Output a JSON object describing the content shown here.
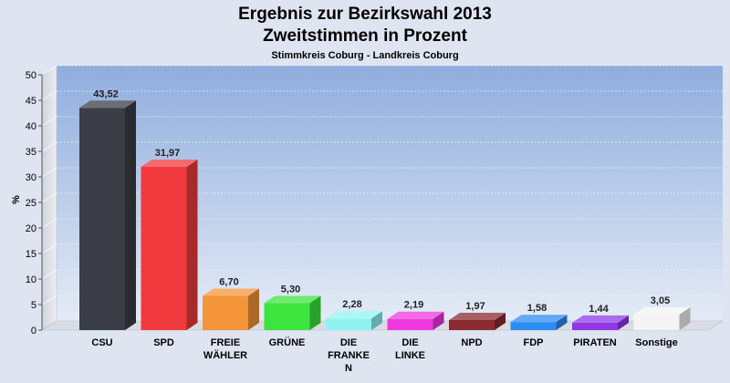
{
  "header": {
    "title_line1": "Ergebnis zur Bezirkswahl 2013",
    "title_line2": "Zweitstimmen in Prozent",
    "subtitle": "Stimmkreis Coburg - Landkreis Coburg"
  },
  "chart_data": {
    "type": "bar",
    "title": "Ergebnis zur Bezirkswahl 2013 Zweitstimmen in Prozent",
    "subtitle": "Stimmkreis Coburg - Landkreis Coburg",
    "xlabel": "",
    "ylabel": "%",
    "ylim": [
      0,
      50
    ],
    "yticks": [
      "0",
      "5",
      "10",
      "15",
      "20",
      "25",
      "30",
      "35",
      "40",
      "45",
      "50"
    ],
    "categories": [
      {
        "label": [
          "CSU"
        ]
      },
      {
        "label": [
          "SPD"
        ]
      },
      {
        "label": [
          "FREIE",
          "WÄHLER"
        ]
      },
      {
        "label": [
          "GRÜNE"
        ]
      },
      {
        "label": [
          "DIE",
          "FRANKE",
          "N"
        ]
      },
      {
        "label": [
          "DIE",
          "LINKE"
        ]
      },
      {
        "label": [
          "NPD"
        ]
      },
      {
        "label": [
          "FDP"
        ]
      },
      {
        "label": [
          "PIRATEN"
        ]
      },
      {
        "label": [
          "Sonstige"
        ]
      }
    ],
    "values": [
      43.52,
      31.97,
      6.7,
      5.3,
      2.28,
      2.19,
      1.97,
      1.58,
      1.44,
      3.05
    ],
    "value_labels": [
      "43,52",
      "31,97",
      "6,70",
      "5,30",
      "2,28",
      "2,19",
      "1,97",
      "1,58",
      "1,44",
      "3,05"
    ],
    "colors": [
      "#3a3d45",
      "#f03a3d",
      "#f5953a",
      "#3ee43e",
      "#8ff4f1",
      "#ee38e0",
      "#8b2b31",
      "#2e8df0",
      "#9038e6",
      "#f4f4f4"
    ],
    "grid": true,
    "legend": "none",
    "plot_background": [
      "#8fadde",
      "#e4ebf6"
    ]
  }
}
